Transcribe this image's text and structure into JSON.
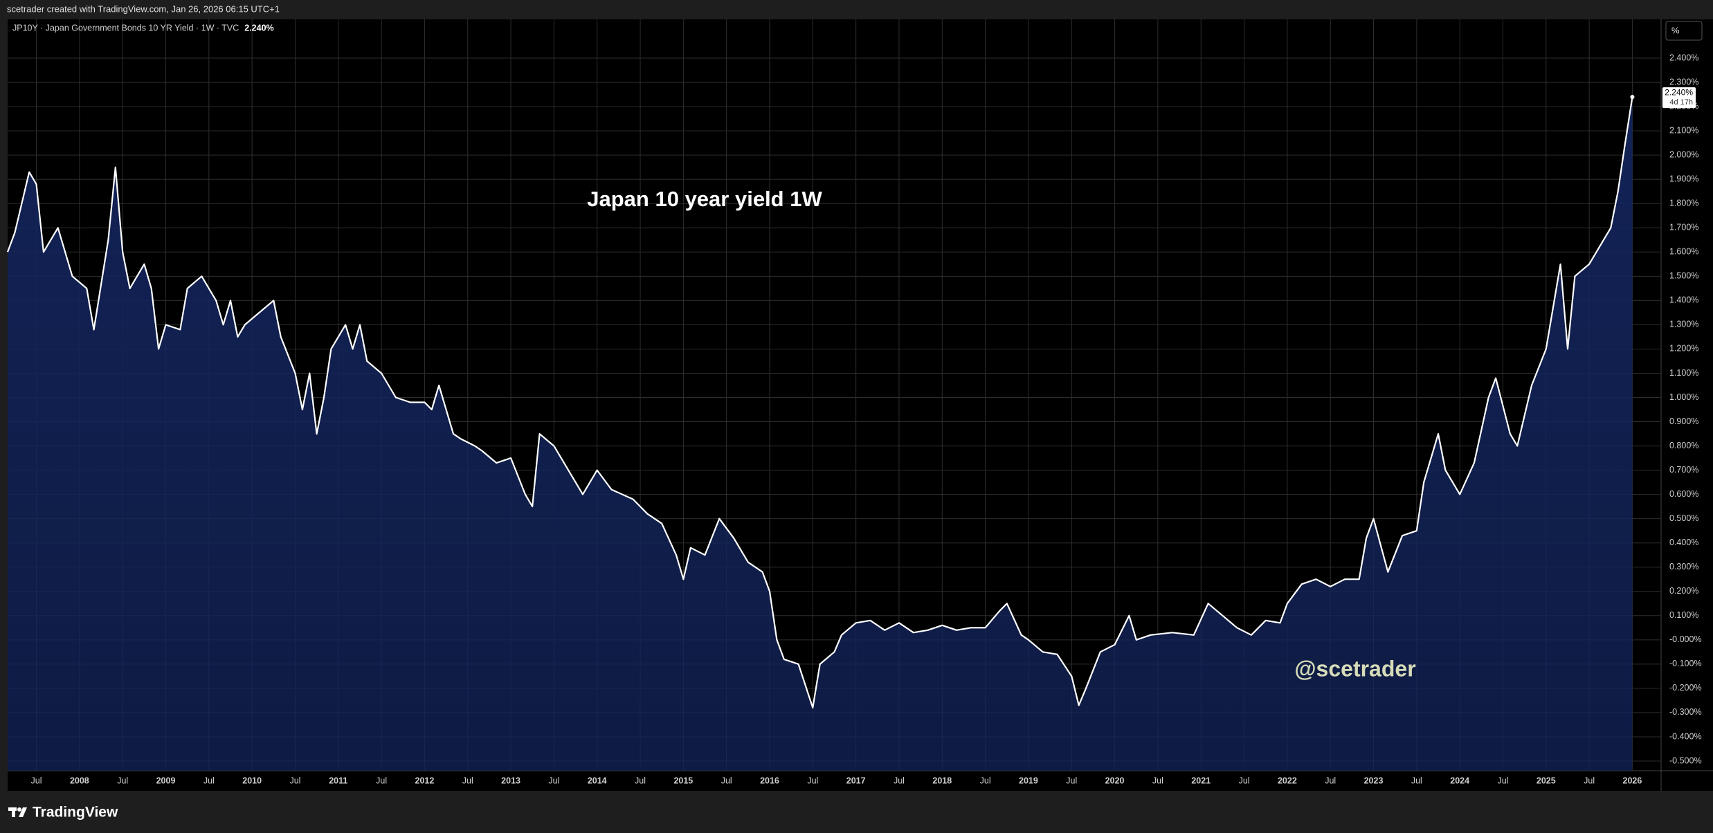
{
  "header": {
    "credit": "scetrader created with TradingView.com, Jan 26, 2026 06:15 UTC+1"
  },
  "footer": {
    "brand": "TradingView"
  },
  "chart_data": {
    "type": "area",
    "title": "Japan 10 year yield 1W",
    "watermark": "@scetrader",
    "unit_button": "%",
    "price_label": "2.240%",
    "countdown": "4d 17h",
    "line_color": "#ffffff",
    "fill_color": "#13245a",
    "grid": true,
    "x": [
      "2007-03",
      "2007-04",
      "2007-06",
      "2007-07",
      "2007-08",
      "2007-10",
      "2007-12",
      "2008-02",
      "2008-03",
      "2008-05",
      "2008-06",
      "2008-07",
      "2008-08",
      "2008-09",
      "2008-10",
      "2008-11",
      "2008-12",
      "2009-01",
      "2009-03",
      "2009-04",
      "2009-06",
      "2009-08",
      "2009-09",
      "2009-10",
      "2009-11",
      "2009-12",
      "2010-02",
      "2010-04",
      "2010-05",
      "2010-07",
      "2010-08",
      "2010-09",
      "2010-10",
      "2010-11",
      "2010-12",
      "2011-02",
      "2011-03",
      "2011-04",
      "2011-05",
      "2011-07",
      "2011-08",
      "2011-09",
      "2011-11",
      "2012-01",
      "2012-02",
      "2012-03",
      "2012-05",
      "2012-06",
      "2012-08",
      "2012-09",
      "2012-11",
      "2013-01",
      "2013-03",
      "2013-04",
      "2013-05",
      "2013-07",
      "2013-09",
      "2013-11",
      "2014-01",
      "2014-03",
      "2014-06",
      "2014-08",
      "2014-10",
      "2014-12",
      "2015-01",
      "2015-02",
      "2015-04",
      "2015-06",
      "2015-08",
      "2015-10",
      "2015-12",
      "2016-01",
      "2016-02",
      "2016-03",
      "2016-05",
      "2016-07",
      "2016-08",
      "2016-10",
      "2016-11",
      "2017-01",
      "2017-03",
      "2017-05",
      "2017-07",
      "2017-09",
      "2017-11",
      "2018-01",
      "2018-03",
      "2018-05",
      "2018-07",
      "2018-09",
      "2018-10",
      "2018-12",
      "2019-01",
      "2019-03",
      "2019-05",
      "2019-07",
      "2019-08",
      "2019-09",
      "2019-11",
      "2020-01",
      "2020-03",
      "2020-04",
      "2020-06",
      "2020-09",
      "2020-12",
      "2021-02",
      "2021-04",
      "2021-06",
      "2021-08",
      "2021-10",
      "2021-12",
      "2022-01",
      "2022-03",
      "2022-05",
      "2022-07",
      "2022-09",
      "2022-11",
      "2022-12",
      "2023-01",
      "2023-03",
      "2023-05",
      "2023-07",
      "2023-08",
      "2023-10",
      "2023-11",
      "2024-01",
      "2024-03",
      "2024-05",
      "2024-06",
      "2024-08",
      "2024-09",
      "2024-11",
      "2025-01",
      "2025-03",
      "2025-04",
      "2025-05",
      "2025-07",
      "2025-09",
      "2025-10",
      "2025-11",
      "2025-12",
      "2026-01"
    ],
    "series": [
      {
        "name": "JP10Y · Japan Government Bonds 10 YR Yield · 1W · TVC",
        "color": "#ffffff",
        "values": [
          1.6,
          1.68,
          1.93,
          1.88,
          1.6,
          1.7,
          1.5,
          1.45,
          1.28,
          1.65,
          1.95,
          1.6,
          1.45,
          1.5,
          1.55,
          1.45,
          1.2,
          1.3,
          1.28,
          1.45,
          1.5,
          1.4,
          1.3,
          1.4,
          1.25,
          1.3,
          1.35,
          1.4,
          1.25,
          1.1,
          0.95,
          1.1,
          0.85,
          1.0,
          1.2,
          1.3,
          1.2,
          1.3,
          1.15,
          1.1,
          1.05,
          1.0,
          0.98,
          0.98,
          0.95,
          1.05,
          0.85,
          0.83,
          0.8,
          0.78,
          0.73,
          0.75,
          0.6,
          0.55,
          0.85,
          0.8,
          0.7,
          0.6,
          0.7,
          0.62,
          0.58,
          0.52,
          0.48,
          0.35,
          0.25,
          0.38,
          0.35,
          0.5,
          0.42,
          0.32,
          0.28,
          0.2,
          0.0,
          -0.08,
          -0.1,
          -0.28,
          -0.1,
          -0.05,
          0.02,
          0.07,
          0.08,
          0.04,
          0.07,
          0.03,
          0.04,
          0.06,
          0.04,
          0.05,
          0.05,
          0.12,
          0.15,
          0.02,
          0.0,
          -0.05,
          -0.06,
          -0.15,
          -0.27,
          -0.2,
          -0.05,
          -0.02,
          0.1,
          0.0,
          0.02,
          0.03,
          0.02,
          0.15,
          0.1,
          0.05,
          0.02,
          0.08,
          0.07,
          0.15,
          0.23,
          0.25,
          0.22,
          0.25,
          0.25,
          0.42,
          0.5,
          0.28,
          0.43,
          0.45,
          0.65,
          0.85,
          0.7,
          0.6,
          0.73,
          1.0,
          1.08,
          0.85,
          0.8,
          1.05,
          1.2,
          1.55,
          1.2,
          1.5,
          1.55,
          1.65,
          1.7,
          1.85,
          2.05,
          2.24
        ]
      }
    ],
    "xlim": [
      "2007-03",
      "2026-05"
    ],
    "ylim": [
      -0.54,
      2.56
    ],
    "xticks": [
      {
        "value": "2007-07",
        "label": "Jul"
      },
      {
        "value": "2008-01",
        "label": "2008"
      },
      {
        "value": "2008-07",
        "label": "Jul"
      },
      {
        "value": "2009-01",
        "label": "2009"
      },
      {
        "value": "2009-07",
        "label": "Jul"
      },
      {
        "value": "2010-01",
        "label": "2010"
      },
      {
        "value": "2010-07",
        "label": "Jul"
      },
      {
        "value": "2011-01",
        "label": "2011"
      },
      {
        "value": "2011-07",
        "label": "Jul"
      },
      {
        "value": "2012-01",
        "label": "2012"
      },
      {
        "value": "2012-07",
        "label": "Jul"
      },
      {
        "value": "2013-01",
        "label": "2013"
      },
      {
        "value": "2013-07",
        "label": "Jul"
      },
      {
        "value": "2014-01",
        "label": "2014"
      },
      {
        "value": "2014-07",
        "label": "Jul"
      },
      {
        "value": "2015-01",
        "label": "2015"
      },
      {
        "value": "2015-07",
        "label": "Jul"
      },
      {
        "value": "2016-01",
        "label": "2016"
      },
      {
        "value": "2016-07",
        "label": "Jul"
      },
      {
        "value": "2017-01",
        "label": "2017"
      },
      {
        "value": "2017-07",
        "label": "Jul"
      },
      {
        "value": "2018-01",
        "label": "2018"
      },
      {
        "value": "2018-07",
        "label": "Jul"
      },
      {
        "value": "2019-01",
        "label": "2019"
      },
      {
        "value": "2019-07",
        "label": "Jul"
      },
      {
        "value": "2020-01",
        "label": "2020"
      },
      {
        "value": "2020-07",
        "label": "Jul"
      },
      {
        "value": "2021-01",
        "label": "2021"
      },
      {
        "value": "2021-07",
        "label": "Jul"
      },
      {
        "value": "2022-01",
        "label": "2022"
      },
      {
        "value": "2022-07",
        "label": "Jul"
      },
      {
        "value": "2023-01",
        "label": "2023"
      },
      {
        "value": "2023-07",
        "label": "Jul"
      },
      {
        "value": "2024-01",
        "label": "2024"
      },
      {
        "value": "2024-07",
        "label": "Jul"
      },
      {
        "value": "2025-01",
        "label": "2025"
      },
      {
        "value": "2025-07",
        "label": "Jul"
      },
      {
        "value": "2026-01",
        "label": "2026"
      }
    ],
    "yticks": [
      {
        "value": 2.4,
        "label": "2.400%"
      },
      {
        "value": 2.3,
        "label": "2.300%"
      },
      {
        "value": 2.2,
        "label": "2.200%"
      },
      {
        "value": 2.1,
        "label": "2.100%"
      },
      {
        "value": 2.0,
        "label": "2.000%"
      },
      {
        "value": 1.9,
        "label": "1.900%"
      },
      {
        "value": 1.8,
        "label": "1.800%"
      },
      {
        "value": 1.7,
        "label": "1.700%"
      },
      {
        "value": 1.6,
        "label": "1.600%"
      },
      {
        "value": 1.5,
        "label": "1.500%"
      },
      {
        "value": 1.4,
        "label": "1.400%"
      },
      {
        "value": 1.3,
        "label": "1.300%"
      },
      {
        "value": 1.2,
        "label": "1.200%"
      },
      {
        "value": 1.1,
        "label": "1.100%"
      },
      {
        "value": 1.0,
        "label": "1.000%"
      },
      {
        "value": 0.9,
        "label": "0.900%"
      },
      {
        "value": 0.8,
        "label": "0.800%"
      },
      {
        "value": 0.7,
        "label": "0.700%"
      },
      {
        "value": 0.6,
        "label": "0.600%"
      },
      {
        "value": 0.5,
        "label": "0.500%"
      },
      {
        "value": 0.4,
        "label": "0.400%"
      },
      {
        "value": 0.3,
        "label": "0.300%"
      },
      {
        "value": 0.2,
        "label": "0.200%"
      },
      {
        "value": 0.1,
        "label": "0.100%"
      },
      {
        "value": 0,
        "label": "-0.000%"
      },
      {
        "value": -0.1,
        "label": "-0.100%"
      },
      {
        "value": -0.2,
        "label": "-0.200%"
      },
      {
        "value": -0.3,
        "label": "-0.300%"
      },
      {
        "value": -0.4,
        "label": "-0.400%"
      },
      {
        "value": -0.5,
        "label": "-0.500%"
      }
    ]
  }
}
